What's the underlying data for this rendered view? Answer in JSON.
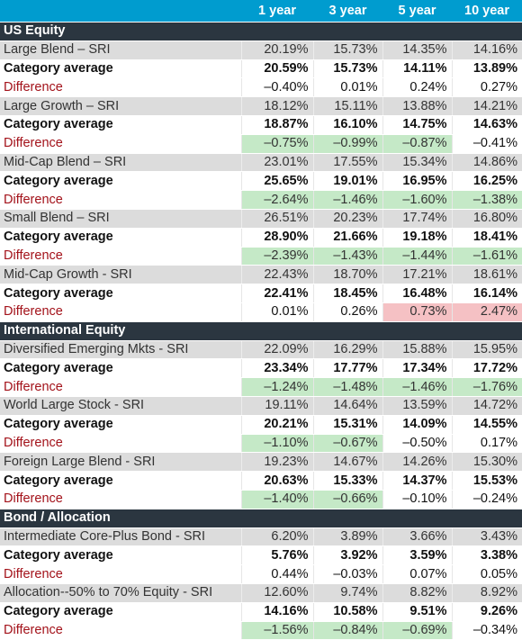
{
  "header": {
    "label": "",
    "cols": [
      "1 year",
      "3 year",
      "5 year",
      "10 year"
    ]
  },
  "sections": [
    {
      "title": "US Equity",
      "groups": [
        {
          "fund": "Large Blend – SRI",
          "fund_vals": [
            "20.19%",
            "15.73%",
            "14.35%",
            "14.16%"
          ],
          "avg_label": "Category average",
          "avg_vals": [
            "20.59%",
            "15.73%",
            "14.11%",
            "13.89%"
          ],
          "diff_label": "Difference",
          "diff_vals": [
            "–0.40%",
            "0.01%",
            "0.24%",
            "0.27%"
          ],
          "diff_hl": [
            "",
            "",
            "",
            ""
          ]
        },
        {
          "fund": "Large Growth – SRI",
          "fund_vals": [
            "18.12%",
            "15.11%",
            "13.88%",
            "14.21%"
          ],
          "avg_label": "Category average",
          "avg_vals": [
            "18.87%",
            "16.10%",
            "14.75%",
            "14.63%"
          ],
          "diff_label": "Difference",
          "diff_vals": [
            "–0.75%",
            "–0.99%",
            "–0.87%",
            "–0.41%"
          ],
          "diff_hl": [
            "neg",
            "neg",
            "neg",
            ""
          ]
        },
        {
          "fund": "Mid-Cap Blend – SRI",
          "fund_vals": [
            "23.01%",
            "17.55%",
            "15.34%",
            "14.86%"
          ],
          "avg_label": "Category average",
          "avg_vals": [
            "25.65%",
            "19.01%",
            "16.95%",
            "16.25%"
          ],
          "diff_label": "Difference",
          "diff_vals": [
            "–2.64%",
            "–1.46%",
            "–1.60%",
            "–1.38%"
          ],
          "diff_hl": [
            "neg",
            "neg",
            "neg",
            "neg"
          ]
        },
        {
          "fund": "Small Blend – SRI",
          "fund_vals": [
            "26.51%",
            "20.23%",
            "17.74%",
            "16.80%"
          ],
          "avg_label": "Category average",
          "avg_vals": [
            "28.90%",
            "21.66%",
            "19.18%",
            "18.41%"
          ],
          "diff_label": "Difference",
          "diff_vals": [
            "–2.39%",
            "–1.43%",
            "–1.44%",
            "–1.61%"
          ],
          "diff_hl": [
            "neg",
            "neg",
            "neg",
            "neg"
          ]
        },
        {
          "fund": "Mid-Cap Growth - SRI",
          "fund_vals": [
            "22.43%",
            "18.70%",
            "17.21%",
            "18.61%"
          ],
          "avg_label": "Category average",
          "avg_vals": [
            "22.41%",
            "18.45%",
            "16.48%",
            "16.14%"
          ],
          "diff_label": "Difference",
          "diff_vals": [
            "0.01%",
            "0.26%",
            "0.73%",
            "2.47%"
          ],
          "diff_hl": [
            "",
            "",
            "pos",
            "pos"
          ]
        }
      ]
    },
    {
      "title": "International Equity",
      "groups": [
        {
          "fund": "Diversified Emerging Mkts - SRI",
          "fund_vals": [
            "22.09%",
            "16.29%",
            "15.88%",
            "15.95%"
          ],
          "avg_label": "Category average",
          "avg_vals": [
            "23.34%",
            "17.77%",
            "17.34%",
            "17.72%"
          ],
          "diff_label": "Difference",
          "diff_vals": [
            "–1.24%",
            "–1.48%",
            "–1.46%",
            "–1.76%"
          ],
          "diff_hl": [
            "neg",
            "neg",
            "neg",
            "neg"
          ]
        },
        {
          "fund": "World Large Stock - SRI",
          "fund_vals": [
            "19.11%",
            "14.64%",
            "13.59%",
            "14.72%"
          ],
          "avg_label": "Category average",
          "avg_vals": [
            "20.21%",
            "15.31%",
            "14.09%",
            "14.55%"
          ],
          "diff_label": "Difference",
          "diff_vals": [
            "–1.10%",
            "–0.67%",
            "–0.50%",
            "0.17%"
          ],
          "diff_hl": [
            "neg",
            "neg",
            "",
            ""
          ]
        },
        {
          "fund": "Foreign Large Blend - SRI",
          "fund_vals": [
            "19.23%",
            "14.67%",
            "14.26%",
            "15.30%"
          ],
          "avg_label": "Category average",
          "avg_vals": [
            "20.63%",
            "15.33%",
            "14.37%",
            "15.53%"
          ],
          "diff_label": "Difference",
          "diff_vals": [
            "–1.40%",
            "–0.66%",
            "–0.10%",
            "–0.24%"
          ],
          "diff_hl": [
            "neg",
            "neg",
            "",
            ""
          ]
        }
      ]
    },
    {
      "title": "Bond / Allocation",
      "groups": [
        {
          "fund": "Intermediate Core-Plus Bond - SRI",
          "fund_vals": [
            "6.20%",
            "3.89%",
            "3.66%",
            "3.43%"
          ],
          "avg_label": "Category average",
          "avg_vals": [
            "5.76%",
            "3.92%",
            "3.59%",
            "3.38%"
          ],
          "diff_label": "Difference",
          "diff_vals": [
            "0.44%",
            "–0.03%",
            "0.07%",
            "0.05%"
          ],
          "diff_hl": [
            "",
            "",
            "",
            ""
          ]
        },
        {
          "fund": "Allocation--50% to 70% Equity - SRI",
          "fund_vals": [
            "12.60%",
            "9.74%",
            "8.82%",
            "8.92%"
          ],
          "avg_label": "Category average",
          "avg_vals": [
            "14.16%",
            "10.58%",
            "9.51%",
            "9.26%"
          ],
          "diff_label": "Difference",
          "diff_vals": [
            "–1.56%",
            "–0.84%",
            "–0.69%",
            "–0.34%"
          ],
          "diff_hl": [
            "neg",
            "neg",
            "neg",
            ""
          ]
        }
      ]
    }
  ]
}
